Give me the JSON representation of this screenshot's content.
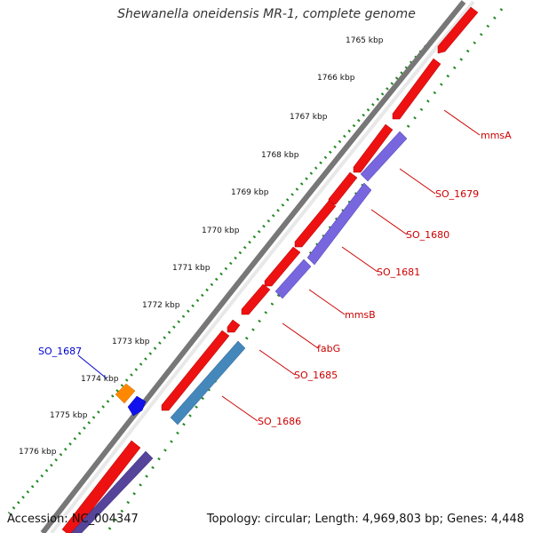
{
  "header": {
    "title": "Shewanella oneidensis MR-1, complete genome"
  },
  "footer": {
    "accession": "Accession: NC_004347",
    "summary": "Topology: circular; Length: 4,969,803 bp; Genes: 4,448"
  },
  "ticks": [
    "1765 kbp",
    "1766 kbp",
    "1767 kbp",
    "1768 kbp",
    "1769 kbp",
    "1770 kbp",
    "1771 kbp",
    "1772 kbp",
    "1773 kbp",
    "1774 kbp",
    "1775 kbp",
    "1776 kbp"
  ],
  "gene_labels": [
    "mmsA",
    "SO_1679",
    "SO_1680",
    "SO_1681",
    "mmsB",
    "fabG",
    "SO_1685",
    "SO_1686",
    "SO_1687"
  ],
  "colors": {
    "cds_forward": "#ee1111",
    "cds_reverse": "#7766dd",
    "cds_blue": "#4488bb",
    "rna_orange": "#ff8800",
    "other_blue": "#1111ee",
    "backbone": "#888888",
    "dots": "#228822",
    "label_red": "#cc0000",
    "label_blue": "#0000cc"
  }
}
